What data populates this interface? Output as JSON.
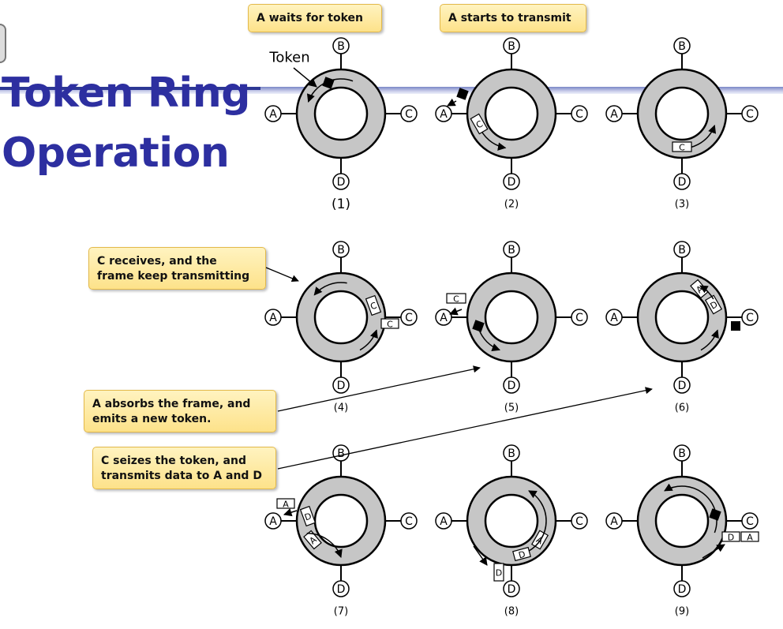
{
  "title_lines": [
    "Token Ring",
    "Operation"
  ],
  "callouts": {
    "waits": "A waits for token",
    "starts": "A starts to transmit",
    "c_receives": [
      "C receives, and the",
      "frame keep transmitting"
    ],
    "a_absorbs": [
      "A absorbs the frame, and",
      "emits a new token."
    ],
    "c_seizes": [
      "C seizes the token, and",
      "transmits data to A and D"
    ]
  },
  "token_label": "Token",
  "station_labels": [
    "A",
    "B",
    "C",
    "D"
  ],
  "panel_labels": [
    "(1)",
    "(2)",
    "(3)",
    "(4)",
    "(5)",
    "(6)",
    "(7)",
    "(8)",
    "(9)"
  ],
  "frame_labels": {
    "p2": "C",
    "p3": "C",
    "p4_ring": "C",
    "p4_out": "C",
    "p5_out": "C",
    "p6_a": "A",
    "p6_d": "D",
    "p7_out": "A",
    "p7_d": "D",
    "p7_a": "A",
    "p8_d": "D",
    "p8_a": "A",
    "p8_out": "D",
    "p9_d": "D",
    "p9_a": "A"
  },
  "colors": {
    "title": "#2d2fa0",
    "ring_fill": "#c6c6c6",
    "callout_bg": "#fde9a4",
    "callout_border": "#e3b94a",
    "token": "#000000"
  }
}
